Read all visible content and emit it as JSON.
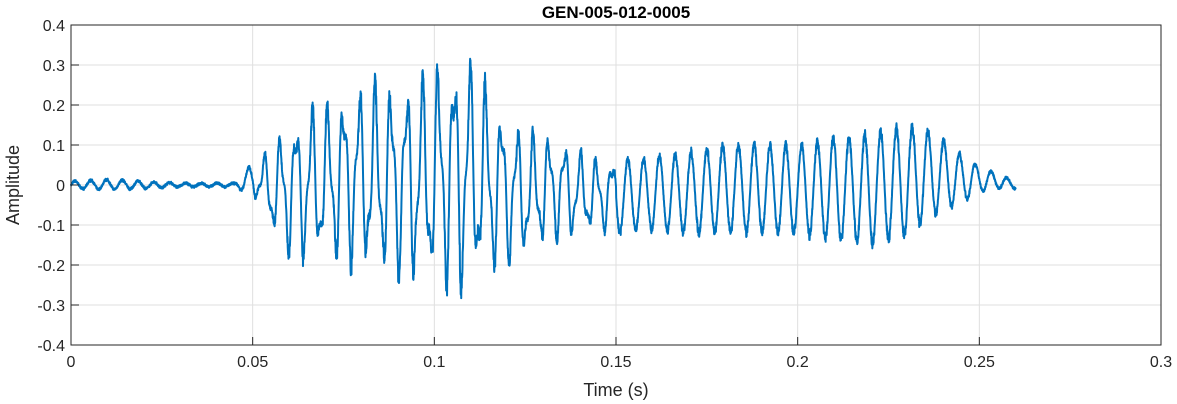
{
  "chart_data": {
    "type": "line",
    "title": "GEN-005-012-0005",
    "xlabel": "Time (s)",
    "ylabel": "Amplitude",
    "xlim": [
      0,
      0.3
    ],
    "ylim": [
      -0.4,
      0.4
    ],
    "x_ticks": [
      0,
      0.05,
      0.1,
      0.15,
      0.2,
      0.25,
      0.3
    ],
    "x_tick_labels": [
      "0",
      "0.05",
      "0.1",
      "0.15",
      "0.2",
      "0.25",
      "0.3"
    ],
    "y_ticks": [
      -0.4,
      -0.3,
      -0.2,
      -0.1,
      0,
      0.1,
      0.2,
      0.3,
      0.4
    ],
    "y_tick_labels": [
      "-0.4",
      "-0.3",
      "-0.2",
      "-0.1",
      "0",
      "0.1",
      "0.2",
      "0.3",
      "0.4"
    ],
    "grid": true,
    "line_color": "#0072BD",
    "series": [
      {
        "envelope_times": [
          0,
          0.01,
          0.02,
          0.03,
          0.045,
          0.048,
          0.052,
          0.056,
          0.06,
          0.065,
          0.07,
          0.075,
          0.08,
          0.085,
          0.09,
          0.095,
          0.1,
          0.105,
          0.108,
          0.112,
          0.116,
          0.12,
          0.125,
          0.13,
          0.135,
          0.14,
          0.145,
          0.15,
          0.155,
          0.16,
          0.17,
          0.18,
          0.19,
          0.2,
          0.21,
          0.215,
          0.22,
          0.225,
          0.23,
          0.235,
          0.24,
          0.245,
          0.25,
          0.255,
          0.26
        ],
        "envelope_max": [
          0.01,
          0.015,
          0.01,
          0.005,
          0.005,
          0.04,
          0.07,
          0.12,
          0.18,
          0.22,
          0.23,
          0.26,
          0.28,
          0.29,
          0.29,
          0.3,
          0.34,
          0.35,
          0.38,
          0.33,
          0.25,
          0.2,
          0.15,
          0.15,
          0.13,
          0.1,
          0.08,
          0.08,
          0.07,
          0.08,
          0.09,
          0.11,
          0.11,
          0.11,
          0.13,
          0.13,
          0.14,
          0.15,
          0.16,
          0.15,
          0.12,
          0.08,
          0.05,
          0.03,
          0.01
        ],
        "envelope_min": [
          -0.01,
          -0.012,
          -0.01,
          -0.005,
          -0.005,
          -0.02,
          -0.05,
          -0.15,
          -0.2,
          -0.22,
          -0.21,
          -0.23,
          -0.24,
          -0.25,
          -0.27,
          -0.28,
          -0.29,
          -0.3,
          -0.32,
          -0.28,
          -0.25,
          -0.23,
          -0.2,
          -0.17,
          -0.15,
          -0.14,
          -0.13,
          -0.13,
          -0.12,
          -0.12,
          -0.13,
          -0.13,
          -0.13,
          -0.13,
          -0.15,
          -0.15,
          -0.16,
          -0.15,
          -0.14,
          -0.1,
          -0.07,
          -0.05,
          -0.02,
          -0.01,
          -0.01
        ],
        "oscillation_frequency_hz": 230
      }
    ]
  }
}
